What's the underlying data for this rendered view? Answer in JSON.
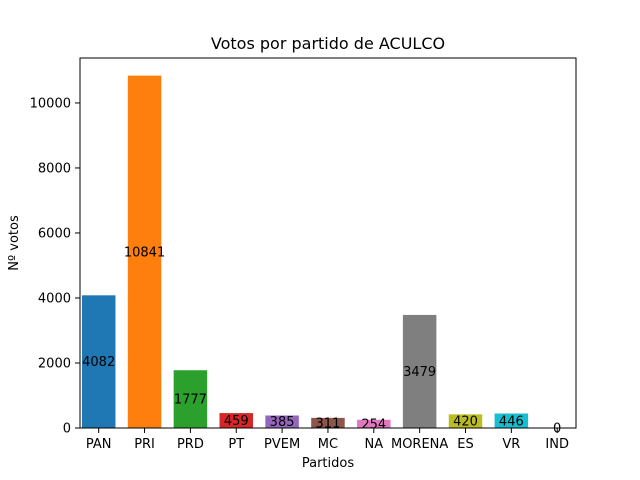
{
  "chart_data": {
    "type": "bar",
    "title": "Votos por partido de ACULCO",
    "xlabel": "Partidos",
    "ylabel": "Nº votos",
    "categories": [
      "PAN",
      "PRI",
      "PRD",
      "PT",
      "PVEM",
      "MC",
      "NA",
      "MORENA",
      "ES",
      "VR",
      "IND"
    ],
    "values": [
      4082,
      10841,
      1777,
      459,
      385,
      311,
      254,
      3479,
      420,
      446,
      0
    ],
    "data_labels": [
      "4082",
      "10841",
      "1777",
      "459",
      "385",
      "311",
      "254",
      "3479",
      "420",
      "446",
      "0"
    ],
    "colors": [
      "#1f77b4",
      "#ff7f0e",
      "#2ca02c",
      "#d62728",
      "#9467bd",
      "#8c564b",
      "#e377c2",
      "#7f7f7f",
      "#bcbd22",
      "#17becf",
      "#1f77b4"
    ],
    "yticks": [
      0,
      2000,
      4000,
      6000,
      8000,
      10000
    ],
    "ytick_labels": [
      "0",
      "2000",
      "4000",
      "6000",
      "8000",
      "10000"
    ],
    "ylim": [
      0,
      11383
    ],
    "grid": false
  }
}
